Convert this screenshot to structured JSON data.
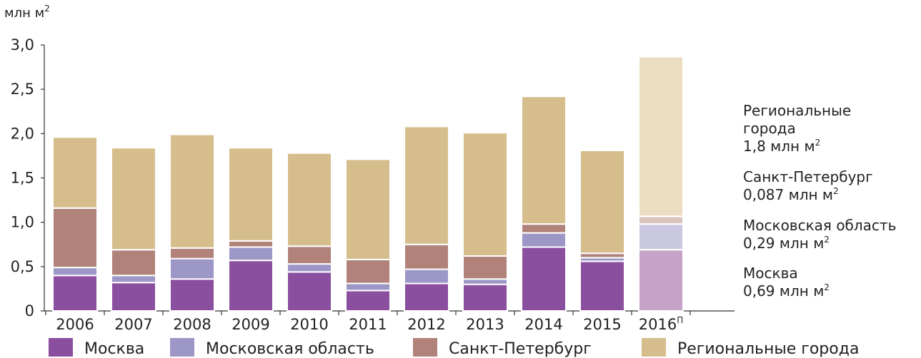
{
  "chart_data": {
    "type": "bar",
    "stacked": true,
    "yunit": "млн м",
    "yunit_sup": "2",
    "ylim": [
      0,
      3.0
    ],
    "y_ticks": [
      0,
      0.5,
      1.0,
      1.5,
      2.0,
      2.5,
      3.0
    ],
    "y_tick_labels": [
      "0",
      "0,5",
      "1,0",
      "1,5",
      "2,0",
      "2,5",
      "3,0"
    ],
    "grid": false,
    "legend_placement": "bottom",
    "categories": [
      "2006",
      "2007",
      "2008",
      "2009",
      "2010",
      "2011",
      "2012",
      "2013",
      "2014",
      "2015",
      "2016"
    ],
    "category_sups": [
      "",
      "",
      "",
      "",
      "",
      "",
      "",
      "",
      "",
      "",
      "П"
    ],
    "series": [
      {
        "name": "Москва",
        "color": "#8b4fa0",
        "values": [
          0.4,
          0.32,
          0.36,
          0.57,
          0.44,
          0.23,
          0.31,
          0.3,
          0.72,
          0.56,
          0.69
        ]
      },
      {
        "name": "Московская область",
        "color": "#9c97c6",
        "values": [
          0.09,
          0.08,
          0.23,
          0.15,
          0.09,
          0.08,
          0.16,
          0.06,
          0.16,
          0.04,
          0.29
        ]
      },
      {
        "name": "Санкт-Петербург",
        "color": "#b08279",
        "values": [
          0.67,
          0.29,
          0.12,
          0.07,
          0.2,
          0.27,
          0.28,
          0.26,
          0.1,
          0.05,
          0.087
        ]
      },
      {
        "name": "Региональные города",
        "color": "#d6bd8c",
        "values": [
          0.8,
          1.15,
          1.28,
          1.05,
          1.05,
          1.13,
          1.33,
          1.39,
          1.44,
          1.16,
          1.8
        ]
      }
    ],
    "highlight_category_index": 10,
    "highlight_colors": [
      "#c6a2c8",
      "#cac7e1",
      "#d9c3be",
      "#ebdcc2"
    ],
    "annotations": [
      {
        "lines": [
          "Региональные",
          "города"
        ],
        "value_line": "1,8 млн м",
        "value_sup": "2"
      },
      {
        "lines": [
          "Санкт-Петербург"
        ],
        "value_line": "0,087 млн м",
        "value_sup": "2"
      },
      {
        "lines": [
          "Московская область"
        ],
        "value_line": "0,29 млн м",
        "value_sup": "2"
      },
      {
        "lines": [
          "Москва"
        ],
        "value_line": "0,69 млн м",
        "value_sup": "2"
      }
    ]
  }
}
